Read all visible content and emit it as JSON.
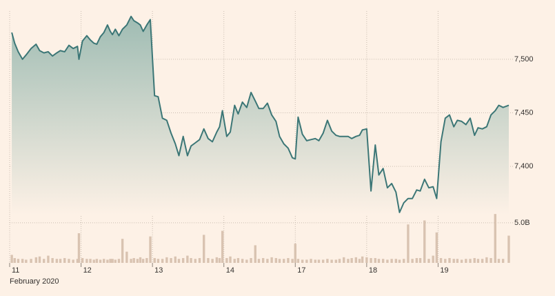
{
  "chart_data": [
    {
      "type": "line",
      "color": "#3b7676",
      "fill": "#9fbcb3",
      "grid": true,
      "xlabel": "February 2020",
      "xlim": [
        0,
        7
      ],
      "xticks": [
        {
          "value": 0,
          "label": "11"
        },
        {
          "value": 1,
          "label": "12"
        },
        {
          "value": 2,
          "label": "13"
        },
        {
          "value": 3,
          "label": "14"
        },
        {
          "value": 4,
          "label": "17"
        },
        {
          "value": 5,
          "label": "18"
        },
        {
          "value": 6,
          "label": "19"
        }
      ],
      "ylim": [
        7355,
        7545
      ],
      "yticks": [
        {
          "value": 7400,
          "label": "7,400"
        },
        {
          "value": 7450,
          "label": "7,450"
        },
        {
          "value": 7500,
          "label": "7,500"
        }
      ],
      "x": [
        0.03,
        0.07,
        0.12,
        0.18,
        0.23,
        0.3,
        0.37,
        0.42,
        0.48,
        0.54,
        0.6,
        0.66,
        0.71,
        0.77,
        0.83,
        0.89,
        0.95,
        0.97,
        1.02,
        1.08,
        1.13,
        1.18,
        1.22,
        1.27,
        1.32,
        1.37,
        1.41,
        1.44,
        1.48,
        1.53,
        1.58,
        1.64,
        1.7,
        1.74,
        1.79,
        1.83,
        1.87,
        1.92,
        1.97,
        2.03,
        2.08,
        2.14,
        2.2,
        2.26,
        2.32,
        2.37,
        2.43,
        2.49,
        2.54,
        2.6,
        2.66,
        2.72,
        2.78,
        2.84,
        2.9,
        2.94,
        2.98,
        3.04,
        3.09,
        3.15,
        3.2,
        3.26,
        3.32,
        3.38,
        3.44,
        3.49,
        3.55,
        3.61,
        3.67,
        3.73,
        3.78,
        3.84,
        3.9,
        3.96,
        4.0,
        4.04,
        4.1,
        4.16,
        4.22,
        4.28,
        4.33,
        4.39,
        4.45,
        4.51,
        4.57,
        4.62,
        4.68,
        4.74,
        4.79,
        4.85,
        4.9,
        4.94,
        5.0,
        5.06,
        5.12,
        5.17,
        5.23,
        5.29,
        5.35,
        5.41,
        5.46,
        5.52,
        5.58,
        5.64,
        5.7,
        5.75,
        5.81,
        5.87,
        5.93,
        5.98,
        6.04,
        6.1,
        6.16,
        6.22,
        6.27,
        6.33,
        6.39,
        6.45,
        6.51,
        6.56,
        6.62,
        6.68,
        6.74,
        6.8,
        6.85,
        6.91,
        6.99
      ],
      "values": [
        7525,
        7515,
        7507,
        7500,
        7504,
        7510,
        7514,
        7508,
        7506,
        7507,
        7503,
        7506,
        7508,
        7507,
        7513,
        7510,
        7512,
        7500,
        7517,
        7522,
        7518,
        7515,
        7514,
        7521,
        7525,
        7532,
        7526,
        7523,
        7528,
        7522,
        7528,
        7532,
        7540,
        7536,
        7534,
        7532,
        7526,
        7532,
        7537,
        7466,
        7465,
        7445,
        7443,
        7431,
        7421,
        7410,
        7428,
        7410,
        7419,
        7422,
        7425,
        7435,
        7426,
        7423,
        7432,
        7437,
        7452,
        7428,
        7432,
        7457,
        7449,
        7460,
        7455,
        7469,
        7461,
        7454,
        7454,
        7459,
        7448,
        7442,
        7428,
        7421,
        7417,
        7408,
        7407,
        7446,
        7430,
        7424,
        7425,
        7426,
        7424,
        7431,
        7443,
        7433,
        7429,
        7428,
        7428,
        7428,
        7426,
        7428,
        7429,
        7434,
        7435,
        7377,
        7420,
        7392,
        7398,
        7380,
        7384,
        7376,
        7357,
        7366,
        7370,
        7370,
        7378,
        7377,
        7388,
        7380,
        7381,
        7370,
        7423,
        7445,
        7448,
        7437,
        7443,
        7442,
        7439,
        7445,
        7429,
        7436,
        7435,
        7437,
        7448,
        7452,
        7457,
        7455,
        7457
      ]
    },
    {
      "type": "bar",
      "color": "#d9c3b1",
      "xlim": [
        0,
        7
      ],
      "ylim": [
        0,
        6.2
      ],
      "yticks": [
        {
          "value": 5,
          "label": "5.0B"
        }
      ],
      "x": [
        0.03,
        0.07,
        0.12,
        0.18,
        0.23,
        0.3,
        0.37,
        0.42,
        0.48,
        0.54,
        0.6,
        0.66,
        0.71,
        0.77,
        0.83,
        0.89,
        0.95,
        0.97,
        1.02,
        1.08,
        1.13,
        1.18,
        1.22,
        1.27,
        1.32,
        1.37,
        1.41,
        1.44,
        1.48,
        1.53,
        1.58,
        1.64,
        1.7,
        1.74,
        1.79,
        1.83,
        1.87,
        1.92,
        1.97,
        2.03,
        2.08,
        2.14,
        2.2,
        2.26,
        2.32,
        2.37,
        2.43,
        2.49,
        2.54,
        2.6,
        2.66,
        2.72,
        2.78,
        2.84,
        2.9,
        2.94,
        2.98,
        3.04,
        3.09,
        3.15,
        3.2,
        3.26,
        3.32,
        3.38,
        3.44,
        3.49,
        3.55,
        3.61,
        3.67,
        3.73,
        3.78,
        3.84,
        3.9,
        3.96,
        4.0,
        4.04,
        4.1,
        4.16,
        4.22,
        4.28,
        4.33,
        4.39,
        4.45,
        4.51,
        4.57,
        4.62,
        4.68,
        4.74,
        4.79,
        4.85,
        4.9,
        4.94,
        5.0,
        5.06,
        5.12,
        5.17,
        5.23,
        5.29,
        5.35,
        5.41,
        5.46,
        5.52,
        5.58,
        5.64,
        5.7,
        5.75,
        5.81,
        5.87,
        5.93,
        5.98,
        6.04,
        6.1,
        6.16,
        6.22,
        6.27,
        6.33,
        6.39,
        6.45,
        6.51,
        6.56,
        6.62,
        6.68,
        6.74,
        6.8,
        6.85,
        6.91,
        6.99
      ],
      "values": [
        1.0,
        0.6,
        0.5,
        0.5,
        0.4,
        0.5,
        0.7,
        0.8,
        0.5,
        0.9,
        0.6,
        0.5,
        0.5,
        0.6,
        0.5,
        0.4,
        0.5,
        3.7,
        0.6,
        0.5,
        0.5,
        0.4,
        0.5,
        0.4,
        0.5,
        0.4,
        0.5,
        0.5,
        0.4,
        0.5,
        3.0,
        1.4,
        0.5,
        0.6,
        0.5,
        0.7,
        0.5,
        0.6,
        3.3,
        0.6,
        0.5,
        0.5,
        0.7,
        0.6,
        0.8,
        0.5,
        0.6,
        0.9,
        0.6,
        0.5,
        0.6,
        3.5,
        0.6,
        0.5,
        0.7,
        0.6,
        4.0,
        0.6,
        0.8,
        0.5,
        0.6,
        0.5,
        0.4,
        0.6,
        2.2,
        0.5,
        0.6,
        0.5,
        0.7,
        0.6,
        0.5,
        0.5,
        0.6,
        0.5,
        2.4,
        0.5,
        0.4,
        0.4,
        0.5,
        0.4,
        0.4,
        0.4,
        0.5,
        0.4,
        0.4,
        0.5,
        0.7,
        0.5,
        0.6,
        0.7,
        0.5,
        0.8,
        0.7,
        0.6,
        0.6,
        0.5,
        0.5,
        0.4,
        0.5,
        0.5,
        0.4,
        0.5,
        4.8,
        0.5,
        0.6,
        0.6,
        5.3,
        0.5,
        0.9,
        3.8,
        0.6,
        0.5,
        0.6,
        0.5,
        0.5,
        0.4,
        0.5,
        0.5,
        0.6,
        0.5,
        0.5,
        0.7,
        0.6,
        6.1,
        0.5,
        0.5,
        3.4
      ]
    }
  ]
}
